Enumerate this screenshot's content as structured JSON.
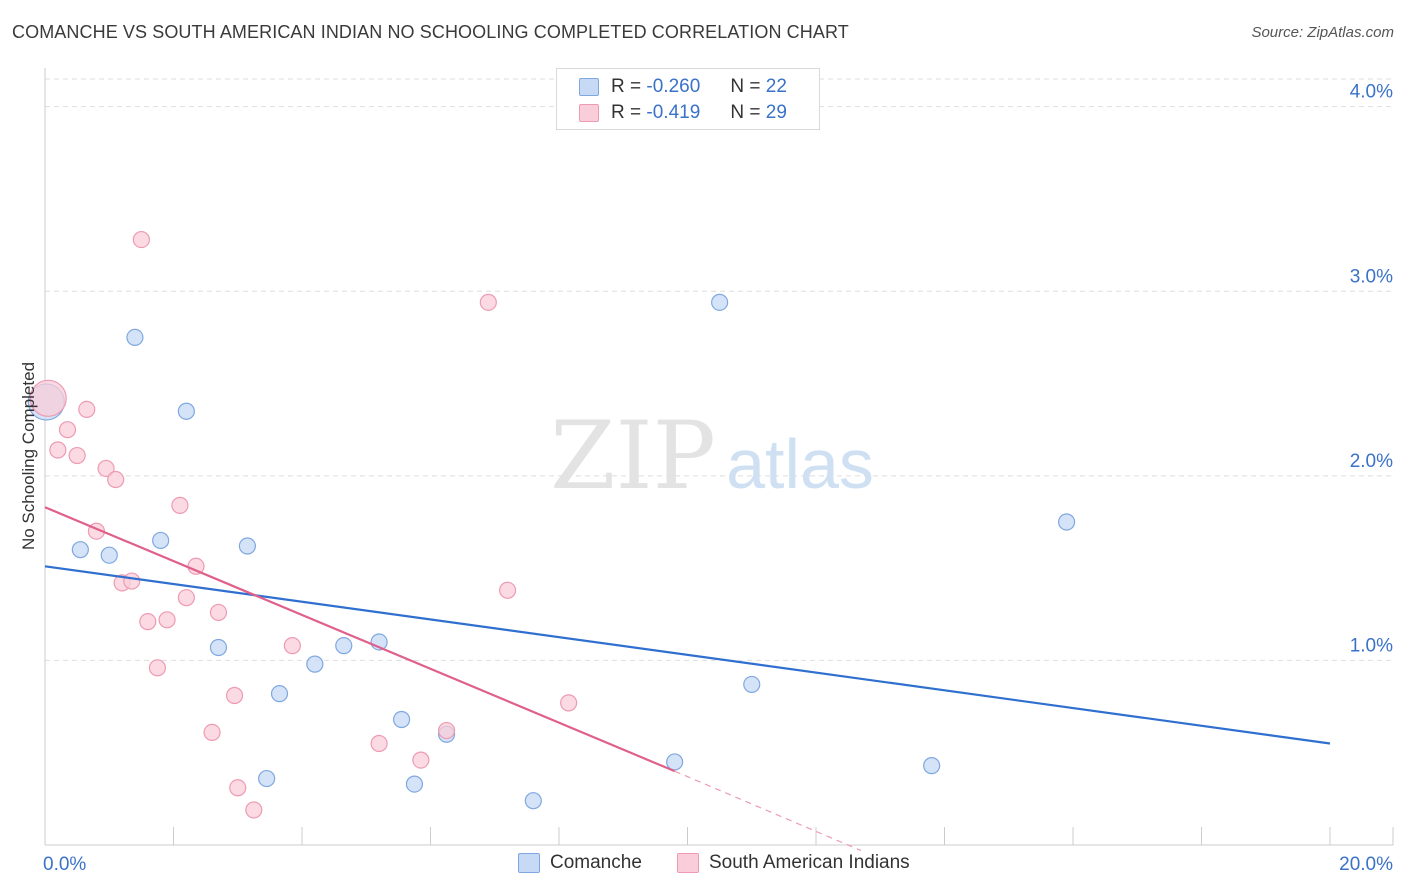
{
  "header": {
    "title": "COMANCHE VS SOUTH AMERICAN INDIAN NO SCHOOLING COMPLETED CORRELATION CHART",
    "source": "Source: ZipAtlas.com"
  },
  "watermark": {
    "zip": "ZIP",
    "atlas": "atlas"
  },
  "legend": {
    "series": [
      {
        "name": "Comanche",
        "r_label": "R =",
        "r_value": "-0.260",
        "n_label": "N =",
        "n_value": "22"
      },
      {
        "name": "South American Indians",
        "r_label": "R =",
        "r_value": "-0.419",
        "n_label": "N =",
        "n_value": "29"
      }
    ]
  },
  "colors": {
    "comanche_fill": "#c6daf5",
    "comanche_stroke": "#7fa8e0",
    "comanche_line": "#2f6fcf",
    "sai_fill": "#f9cdd9",
    "sai_stroke": "#ee9ab2",
    "sai_line": "#e0608c",
    "axis_text": "#3a72c8",
    "grid": "#dedede"
  },
  "chart_data": {
    "type": "scatter",
    "title": "COMANCHE VS SOUTH AMERICAN INDIAN NO SCHOOLING COMPLETED CORRELATION CHART",
    "xlabel": "",
    "ylabel": "No Schooling Completed",
    "xlim": [
      0,
      20
    ],
    "ylim": [
      0,
      4.15
    ],
    "x_tick_labels": [
      "0.0%",
      "20.0%"
    ],
    "y_ticks": [
      1,
      2,
      3,
      4
    ],
    "y_tick_labels": [
      "1.0%",
      "2.0%",
      "3.0%",
      "4.0%"
    ],
    "grid": true,
    "series": [
      {
        "name": "Comanche",
        "points": [
          {
            "x": 0.02,
            "y": 2.4,
            "big": true
          },
          {
            "x": 0.55,
            "y": 1.6
          },
          {
            "x": 1.0,
            "y": 1.57
          },
          {
            "x": 1.4,
            "y": 2.75
          },
          {
            "x": 1.8,
            "y": 1.65
          },
          {
            "x": 2.2,
            "y": 2.35
          },
          {
            "x": 2.7,
            "y": 1.07
          },
          {
            "x": 3.15,
            "y": 1.62
          },
          {
            "x": 3.45,
            "y": 0.36
          },
          {
            "x": 3.65,
            "y": 0.82
          },
          {
            "x": 4.2,
            "y": 0.98
          },
          {
            "x": 4.65,
            "y": 1.08
          },
          {
            "x": 5.2,
            "y": 1.1
          },
          {
            "x": 5.55,
            "y": 0.68
          },
          {
            "x": 5.75,
            "y": 0.33
          },
          {
            "x": 6.25,
            "y": 0.6
          },
          {
            "x": 7.6,
            "y": 0.24
          },
          {
            "x": 9.8,
            "y": 0.45
          },
          {
            "x": 10.5,
            "y": 2.94
          },
          {
            "x": 11.0,
            "y": 0.87
          },
          {
            "x": 13.8,
            "y": 0.43
          },
          {
            "x": 15.9,
            "y": 1.75
          }
        ],
        "trend": {
          "x1": 0,
          "y1": 1.51,
          "x2": 20,
          "y2": 0.55
        }
      },
      {
        "name": "South American Indians",
        "points": [
          {
            "x": 0.05,
            "y": 2.42,
            "big": true
          },
          {
            "x": 0.2,
            "y": 2.14
          },
          {
            "x": 0.35,
            "y": 2.25
          },
          {
            "x": 0.5,
            "y": 2.11
          },
          {
            "x": 0.65,
            "y": 2.36
          },
          {
            "x": 0.8,
            "y": 1.7
          },
          {
            "x": 0.95,
            "y": 2.04
          },
          {
            "x": 1.1,
            "y": 1.98
          },
          {
            "x": 1.2,
            "y": 1.42
          },
          {
            "x": 1.35,
            "y": 1.43
          },
          {
            "x": 1.5,
            "y": 3.28
          },
          {
            "x": 1.6,
            "y": 1.21
          },
          {
            "x": 1.75,
            "y": 0.96
          },
          {
            "x": 1.9,
            "y": 1.22
          },
          {
            "x": 2.1,
            "y": 1.84
          },
          {
            "x": 2.2,
            "y": 1.34
          },
          {
            "x": 2.35,
            "y": 1.51
          },
          {
            "x": 2.6,
            "y": 0.61
          },
          {
            "x": 2.7,
            "y": 1.26
          },
          {
            "x": 2.95,
            "y": 0.81
          },
          {
            "x": 3.0,
            "y": 0.31
          },
          {
            "x": 3.25,
            "y": 0.19
          },
          {
            "x": 3.85,
            "y": 1.08
          },
          {
            "x": 5.2,
            "y": 0.55
          },
          {
            "x": 5.85,
            "y": 0.46
          },
          {
            "x": 6.25,
            "y": 0.62
          },
          {
            "x": 6.9,
            "y": 2.94
          },
          {
            "x": 7.2,
            "y": 1.38
          },
          {
            "x": 8.15,
            "y": 0.77
          }
        ],
        "trend": {
          "x1": 0,
          "y1": 1.83,
          "x2": 9.8,
          "y2": 0.4
        },
        "trend_dashed": {
          "x1": 9.8,
          "y1": 0.4,
          "x2": 12.7,
          "y2": -0.03
        }
      }
    ]
  }
}
